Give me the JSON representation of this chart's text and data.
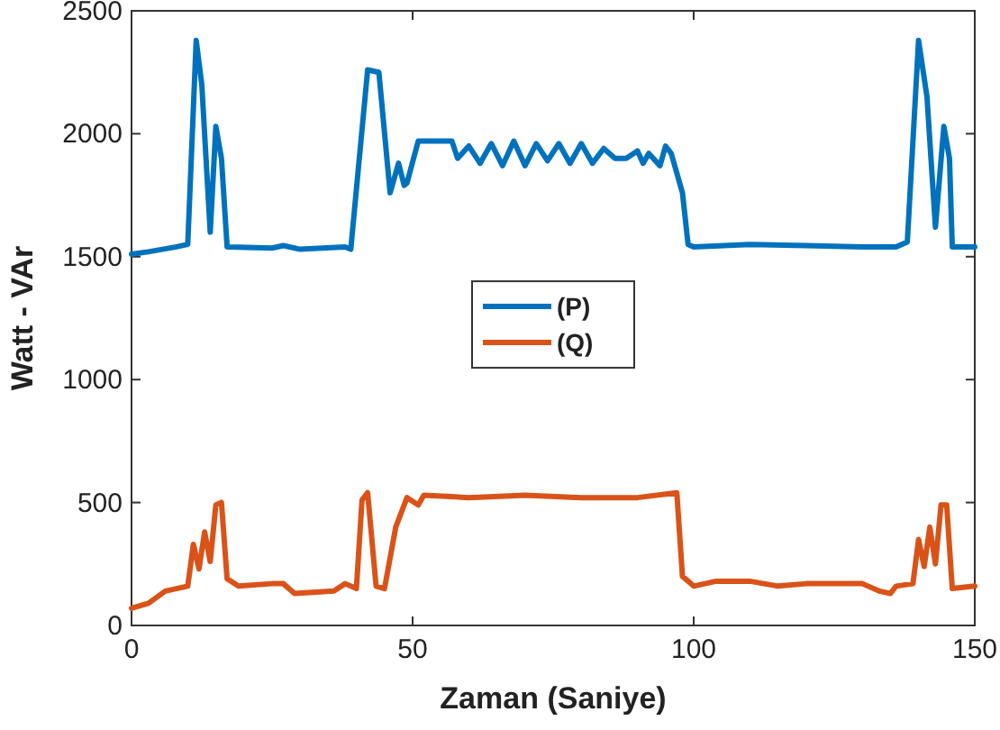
{
  "chart_data": {
    "type": "line",
    "xlabel": "Zaman (Saniye)",
    "ylabel": "Watt - VAr",
    "xlim": [
      0,
      150
    ],
    "ylim": [
      0,
      2500
    ],
    "xticks": [
      0,
      50,
      100,
      150
    ],
    "yticks": [
      0,
      500,
      1000,
      1500,
      2000,
      2500
    ],
    "grid": false,
    "legend": "center",
    "line_style": "solid",
    "marker": "none",
    "series": [
      {
        "name": "(P)",
        "color": "#0072bd",
        "x": [
          0,
          3,
          8,
          10,
          11.5,
          12.5,
          14,
          15,
          16,
          17,
          25,
          27,
          30,
          38,
          39,
          42,
          44,
          46,
          47.5,
          48.5,
          49,
          51,
          57,
          58,
          60,
          62,
          64,
          66,
          68,
          70,
          72,
          74,
          76,
          78,
          80,
          82,
          84,
          86,
          88,
          90,
          91,
          92,
          94,
          95,
          96,
          98,
          99,
          100,
          110,
          120,
          130,
          136,
          138,
          140,
          141.5,
          143,
          144.5,
          145.5,
          146,
          150
        ],
        "values": [
          1510,
          1520,
          1540,
          1550,
          2380,
          2200,
          1600,
          2030,
          1900,
          1540,
          1535,
          1545,
          1530,
          1540,
          1530,
          2260,
          2250,
          1760,
          1880,
          1790,
          1800,
          1970,
          1970,
          1900,
          1950,
          1880,
          1960,
          1870,
          1970,
          1870,
          1960,
          1890,
          1960,
          1880,
          1960,
          1880,
          1940,
          1900,
          1900,
          1930,
          1880,
          1920,
          1870,
          1950,
          1920,
          1760,
          1550,
          1540,
          1550,
          1545,
          1540,
          1540,
          1560,
          2380,
          2150,
          1620,
          2030,
          1900,
          1540,
          1540
        ]
      },
      {
        "name": "(Q)",
        "color": "#d95319",
        "x": [
          0,
          3,
          6,
          8,
          10,
          11,
          12,
          13,
          14,
          15,
          16,
          17,
          19,
          25,
          27,
          29,
          36,
          38,
          40,
          41,
          42,
          43.5,
          45,
          47,
          49,
          51,
          52,
          60,
          70,
          80,
          90,
          97,
          98,
          100,
          104,
          110,
          115,
          120,
          130,
          133,
          135,
          136,
          139,
          140,
          141,
          142,
          143,
          144,
          145,
          146,
          150
        ],
        "values": [
          70,
          90,
          140,
          150,
          160,
          330,
          230,
          380,
          260,
          490,
          500,
          190,
          160,
          170,
          170,
          130,
          140,
          170,
          150,
          510,
          540,
          160,
          150,
          400,
          520,
          490,
          530,
          520,
          530,
          520,
          520,
          540,
          200,
          160,
          180,
          180,
          160,
          170,
          170,
          140,
          130,
          160,
          170,
          350,
          240,
          400,
          250,
          490,
          490,
          150,
          160
        ]
      }
    ]
  }
}
